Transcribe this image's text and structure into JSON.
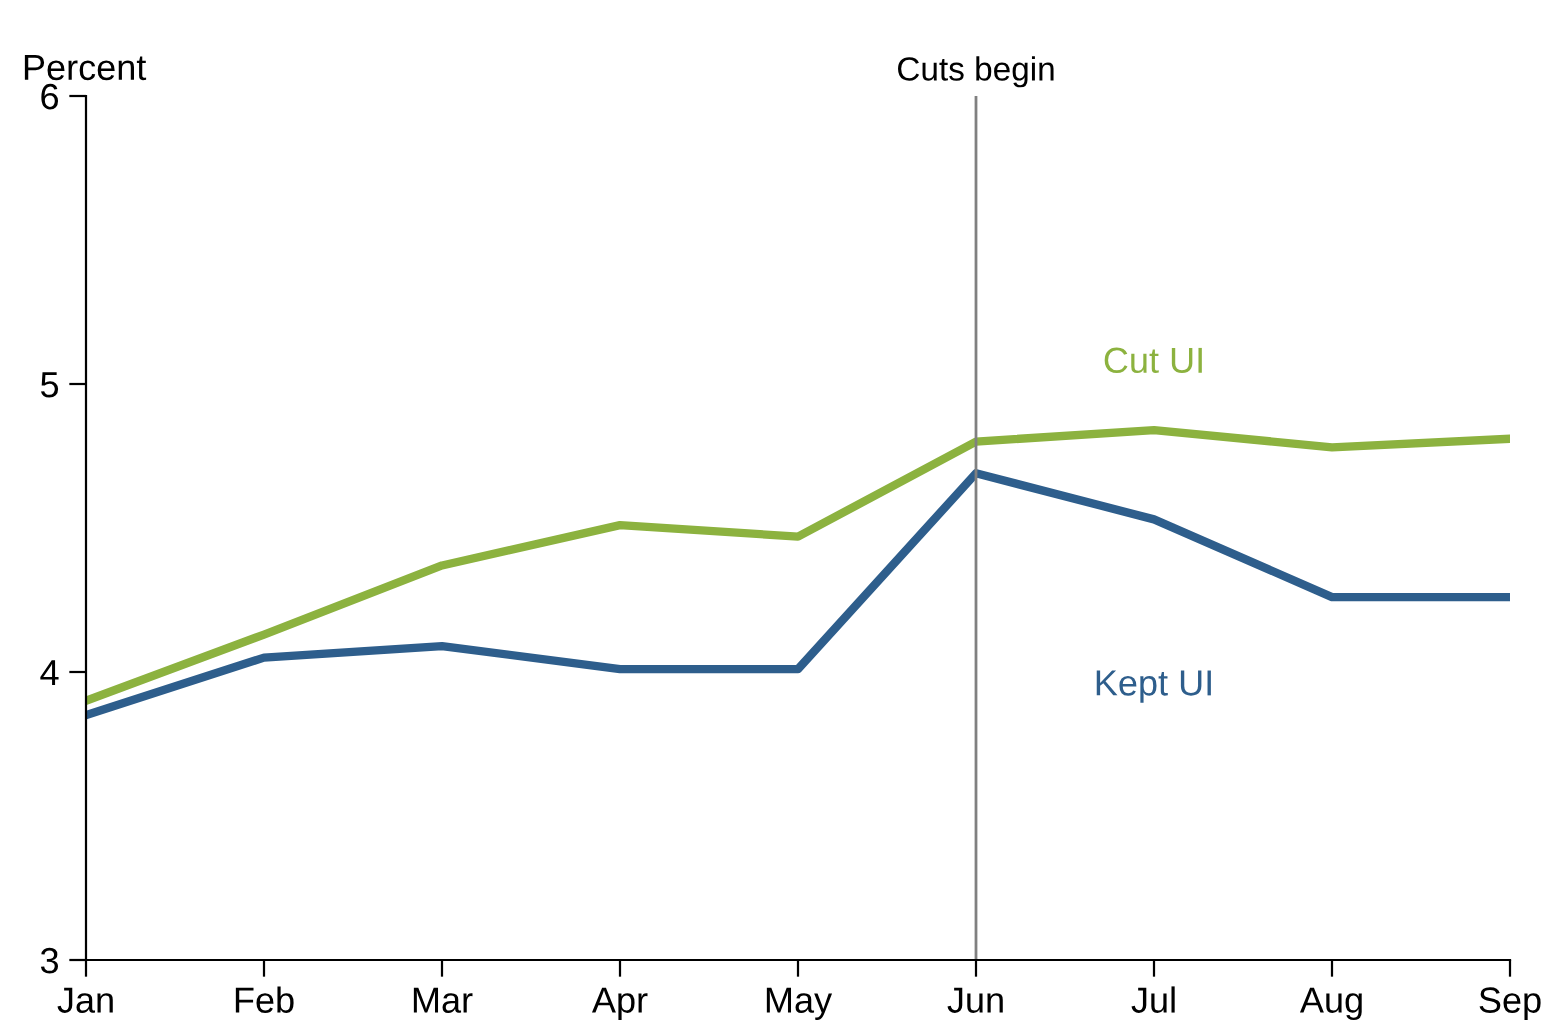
{
  "chart_data": {
    "type": "line",
    "ylabel": "Percent",
    "categories": [
      "Jan",
      "Feb",
      "Mar",
      "Apr",
      "May",
      "Jun",
      "Jul",
      "Aug",
      "Sep"
    ],
    "series": [
      {
        "name": "Cut UI",
        "color": "#8cb23f",
        "values": [
          3.9,
          4.13,
          4.37,
          4.51,
          4.47,
          4.8,
          4.84,
          4.78,
          4.81
        ]
      },
      {
        "name": "Kept UI",
        "color": "#2e5e8c",
        "values": [
          3.85,
          4.05,
          4.09,
          4.01,
          4.01,
          4.69,
          4.53,
          4.26,
          4.26
        ]
      }
    ],
    "ylim": [
      3,
      6
    ],
    "yticks": [
      3,
      4,
      5,
      6
    ],
    "ref_lines": [
      {
        "axis": "x",
        "value": "Jun",
        "label": "Cuts begin",
        "color": "#808080"
      }
    ],
    "grid": false,
    "legend": false,
    "marker": "none",
    "line_style": "solid"
  }
}
